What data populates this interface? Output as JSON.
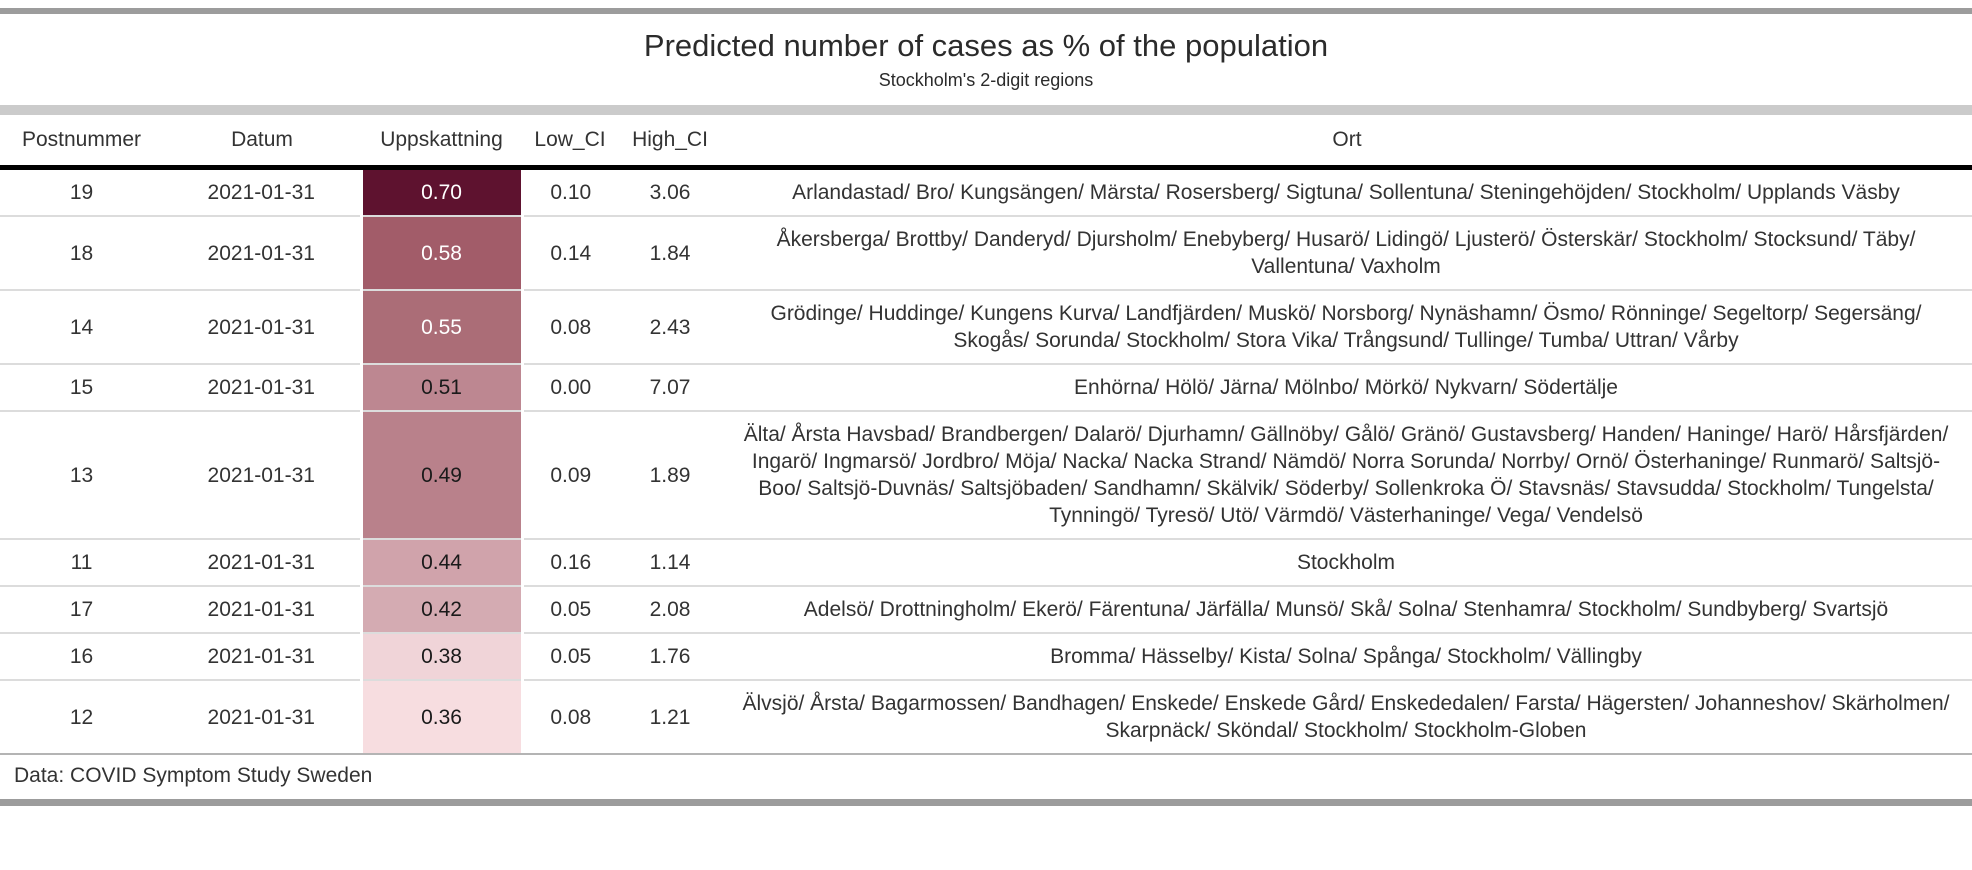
{
  "header": {
    "title": "Predicted number of cases as % of the population",
    "subtitle": "Stockholm's 2-digit regions"
  },
  "footer": {
    "source_note": "Data: COVID Symptom Study Sweden"
  },
  "chart_data": {
    "type": "table",
    "title": "Predicted number of cases as % of the population",
    "subtitle": "Stockholm's 2-digit regions",
    "source": "Data: COVID Symptom Study Sweden",
    "columns": [
      "Postnummer",
      "Datum",
      "Uppskattning",
      "Low_CI",
      "High_CI",
      "Ort"
    ],
    "heat_column": "Uppskattning",
    "heat_scale": {
      "min": 0.36,
      "max": 0.7,
      "light_color": "#f7dde0",
      "dark_color": "#5e122f"
    },
    "rows": [
      {
        "postnummer": "19",
        "datum": "2021-01-31",
        "uppskattning": "0.70",
        "low_ci": "0.10",
        "high_ci": "3.06",
        "ort": "Arlandastad/ Bro/ Kungsängen/ Märsta/ Rosersberg/ Sigtuna/ Sollentuna/ Steningehöjden/ Stockholm/ Upplands Väsby",
        "cell_fill": "#5e122f",
        "cell_text_color": "#ffffff"
      },
      {
        "postnummer": "18",
        "datum": "2021-01-31",
        "uppskattning": "0.58",
        "low_ci": "0.14",
        "high_ci": "1.84",
        "ort": "Åkersberga/ Brottby/ Danderyd/ Djursholm/ Enebyberg/ Husarö/ Lidingö/ Ljusterö/ Österskär/ Stockholm/ Stocksund/ Täby/ Vallentuna/ Vaxholm",
        "cell_fill": "#a25c69",
        "cell_text_color": "#ffffff"
      },
      {
        "postnummer": "14",
        "datum": "2021-01-31",
        "uppskattning": "0.55",
        "low_ci": "0.08",
        "high_ci": "2.43",
        "ort": "Grödinge/ Huddinge/ Kungens Kurva/ Landfjärden/ Muskö/ Norsborg/ Nynäshamn/ Ösmo/ Rönninge/ Segeltorp/ Segersäng/ Skogås/ Sorunda/ Stockholm/ Stora Vika/ Trångsund/ Tullinge/ Tumba/ Uttran/ Vårby",
        "cell_fill": "#ab6d77",
        "cell_text_color": "#ffffff"
      },
      {
        "postnummer": "15",
        "datum": "2021-01-31",
        "uppskattning": "0.51",
        "low_ci": "0.00",
        "high_ci": "7.07",
        "ort": "Enhörna/ Hölö/ Järna/ Mölnbo/ Mörkö/ Nykvarn/ Södertälje",
        "cell_fill": "#bd8791",
        "cell_text_color": "#1a1a1a"
      },
      {
        "postnummer": "13",
        "datum": "2021-01-31",
        "uppskattning": "0.49",
        "low_ci": "0.09",
        "high_ci": "1.89",
        "ort": "Älta/ Årsta Havsbad/ Brandbergen/ Dalarö/ Djurhamn/ Gällnöby/ Gålö/ Gränö/ Gustavsberg/ Handen/ Haninge/ Harö/ Hårsfjärden/ Ingarö/ Ingmarsö/ Jordbro/ Möja/ Nacka/ Nacka Strand/ Nämdö/ Norra Sorunda/ Norrby/ Ornö/ Österhaninge/ Runmarö/ Saltsjö-Boo/ Saltsjö-Duvnäs/ Saltsjöbaden/ Sandhamn/ Skälvik/ Söderby/ Sollenkroka Ö/ Stavsnäs/ Stavsudda/ Stockholm/ Tungelsta/ Tynningö/ Tyresö/ Utö/ Värmdö/ Västerhaninge/ Vega/ Vendelsö",
        "cell_fill": "#b9818b",
        "cell_text_color": "#1a1a1a"
      },
      {
        "postnummer": "11",
        "datum": "2021-01-31",
        "uppskattning": "0.44",
        "low_ci": "0.16",
        "high_ci": "1.14",
        "ort": "Stockholm",
        "cell_fill": "#d0a3ab",
        "cell_text_color": "#1a1a1a"
      },
      {
        "postnummer": "17",
        "datum": "2021-01-31",
        "uppskattning": "0.42",
        "low_ci": "0.05",
        "high_ci": "2.08",
        "ort": "Adelsö/ Drottningholm/ Ekerö/ Färentuna/ Järfälla/ Munsö/ Skå/ Solna/ Stenhamra/ Stockholm/ Sundbyberg/ Svartsjö",
        "cell_fill": "#d4abb2",
        "cell_text_color": "#1a1a1a"
      },
      {
        "postnummer": "16",
        "datum": "2021-01-31",
        "uppskattning": "0.38",
        "low_ci": "0.05",
        "high_ci": "1.76",
        "ort": "Bromma/ Hässelby/ Kista/ Solna/ Spånga/ Stockholm/ Vällingby",
        "cell_fill": "#f0d4d8",
        "cell_text_color": "#1a1a1a"
      },
      {
        "postnummer": "12",
        "datum": "2021-01-31",
        "uppskattning": "0.36",
        "low_ci": "0.08",
        "high_ci": "1.21",
        "ort": "Älvsjö/ Årsta/ Bagarmossen/ Bandhagen/ Enskede/ Enskede Gård/ Enskededalen/ Farsta/ Hägersten/ Johanneshov/ Skärholmen/ Skarpnäck/ Sköndal/ Stockholm/ Stockholm-Globen",
        "cell_fill": "#f7dde0",
        "cell_text_color": "#1a1a1a"
      }
    ]
  }
}
